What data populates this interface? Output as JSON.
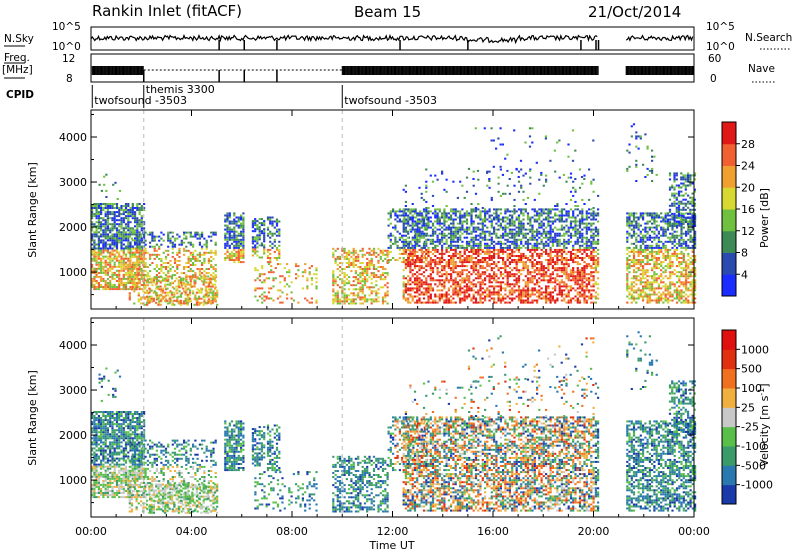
{
  "header": {
    "title": "Rankin Inlet (fitACF)",
    "beam": "Beam 15",
    "date": "21/Oct/2014"
  },
  "status_panels": {
    "nsky_label": "N.Sky",
    "nsky_ticks": [
      "10^5",
      "10^0"
    ],
    "nsearch_label": "N.Search",
    "nsearch_ticks": [
      "10^5",
      "10^0"
    ],
    "freq_label_1": "Freq.",
    "freq_label_2": "[MHz]",
    "freq_ticks": [
      "12",
      "8"
    ],
    "nave_label": "Nave",
    "nave_ticks": [
      "60",
      "0"
    ],
    "cpid_label": "CPID",
    "cpid_segments": [
      {
        "name": "twofsound -3503",
        "start_hour": 0.05
      },
      {
        "name": "themis 3300",
        "start_hour": 2.1
      },
      {
        "name": "twofsound -3503",
        "start_hour": 10.0
      }
    ]
  },
  "chart_data": [
    {
      "type": "heatmap",
      "name": "power",
      "ylabel": "Slant Range [km]",
      "yticks": [
        "4000",
        "3000",
        "2000",
        "1000"
      ],
      "ylim": [
        180,
        4600
      ],
      "colorbar_label": "Power [dB]",
      "colorbar_ticks": [
        "28",
        "24",
        "20",
        "16",
        "12",
        "8",
        "4"
      ],
      "colors": [
        "#1a2cff",
        "#2a4ab0",
        "#3e8a56",
        "#70c040",
        "#d8d832",
        "#f0a030",
        "#f06030",
        "#e01818"
      ]
    },
    {
      "type": "heatmap",
      "name": "velocity",
      "ylabel": "Slant Range [km]",
      "yticks": [
        "4000",
        "3000",
        "2000",
        "1000"
      ],
      "ylim": [
        180,
        4600
      ],
      "colorbar_label": "Velocity [m s",
      "colorbar_label_sup": "-1",
      "colorbar_label_end": "]",
      "colorbar_ticks": [
        "1000",
        "500",
        "100",
        "25",
        "-25",
        "-100",
        "-500",
        "-1000"
      ],
      "colors": [
        "#1a3aaa",
        "#2a78b0",
        "#3a9a6a",
        "#58c048",
        "#c8c8c8",
        "#f0b040",
        "#f07020",
        "#e03010",
        "#e01010"
      ]
    }
  ],
  "x_axis": {
    "label": "Time UT",
    "ticks": [
      "00:00",
      "04:00",
      "08:00",
      "12:00",
      "16:00",
      "20:00",
      "00:00"
    ],
    "range_hours": [
      0,
      24
    ]
  }
}
